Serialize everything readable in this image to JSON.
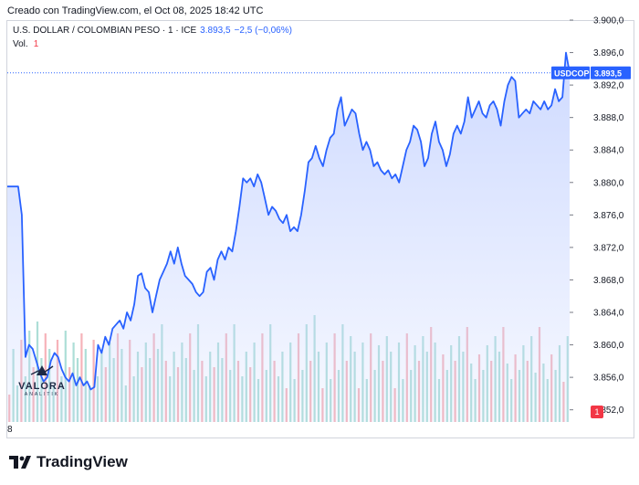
{
  "header": {
    "created_note": "Creado con TradingView.com, el Oct 08, 2025 18:42 UTC"
  },
  "legend": {
    "symbol": "U.S. DOLLAR / COLOMBIAN PESO · 1 · ICE",
    "price": "3.893,5",
    "change": "−2,5 (−0,06%)",
    "vol_label": "Vol.",
    "vol_value": "1"
  },
  "price_tag": {
    "ticker": "USDCOP",
    "value": "3.893,5"
  },
  "watermark": {
    "word": "VALORA",
    "sub": "ANALITIK"
  },
  "x_axis_left_label": "8",
  "volume_badge": "1",
  "footer": {
    "brand": "TradingView"
  },
  "colors": {
    "line": "#2962ff",
    "area_top": "#c9d6ff",
    "vol_up": "#9fd8d0",
    "vol_down": "#f5a6ad",
    "tag_bg": "#2962ff"
  },
  "chart_data": {
    "type": "area",
    "ylim": [
      3850.5,
      3900
    ],
    "y_ticks": [
      3852,
      3856,
      3860,
      3864,
      3868,
      3872,
      3876,
      3880,
      3884,
      3888,
      3892,
      3896,
      3900
    ],
    "y_tick_labels": [
      "3.852,0",
      "3.856,0",
      "3.860,0",
      "3.864,0",
      "3.868,0",
      "3.872,0",
      "3.876,0",
      "3.880,0",
      "3.884,0",
      "3.888,0",
      "3.892,0",
      "3.896,0",
      "3.900,0"
    ],
    "series": [
      {
        "values": [
          3879.5,
          3879.5,
          3879.5,
          3879.5,
          3876.0,
          3858.5,
          3860.0,
          3859.5,
          3858.0,
          3856.5,
          3855.5,
          3856.0,
          3858.0,
          3859.0,
          3858.5,
          3857.0,
          3856.0,
          3855.5,
          3856.5,
          3855.0,
          3856.0,
          3855.0,
          3855.5,
          3854.5,
          3854.8,
          3860.0,
          3859.0,
          3861.0,
          3860.0,
          3862.0,
          3862.5,
          3863.0,
          3862.0,
          3864.0,
          3863.0,
          3865.0,
          3868.5,
          3868.8,
          3867.0,
          3866.5,
          3864.0,
          3866.0,
          3868.0,
          3869.0,
          3870.0,
          3871.5,
          3870.0,
          3872.0,
          3870.0,
          3868.5,
          3868.0,
          3867.5,
          3866.5,
          3866.0,
          3866.5,
          3869.0,
          3869.5,
          3868.0,
          3870.5,
          3871.5,
          3870.5,
          3872.0,
          3871.5,
          3874.0,
          3877.0,
          3880.5,
          3880.0,
          3880.5,
          3879.5,
          3881.0,
          3880.0,
          3878.0,
          3876.0,
          3877.0,
          3876.5,
          3875.5,
          3875.0,
          3876.0,
          3874.0,
          3874.5,
          3874.0,
          3876.0,
          3879.0,
          3882.5,
          3883.0,
          3884.5,
          3883.0,
          3882.0,
          3884.0,
          3885.5,
          3886.0,
          3889.0,
          3890.5,
          3887.0,
          3888.0,
          3889.0,
          3888.5,
          3886.0,
          3884.0,
          3885.0,
          3884.0,
          3882.0,
          3882.5,
          3881.5,
          3881.0,
          3881.5,
          3880.5,
          3881.0,
          3880.0,
          3882.0,
          3884.0,
          3885.0,
          3887.0,
          3886.5,
          3885.0,
          3882.0,
          3883.0,
          3886.0,
          3887.5,
          3885.0,
          3884.0,
          3882.0,
          3883.5,
          3886.0,
          3887.0,
          3886.0,
          3887.5,
          3890.5,
          3888.0,
          3889.0,
          3890.0,
          3888.5,
          3888.0,
          3889.5,
          3890.0,
          3889.0,
          3887.0,
          3890.0,
          3892.0,
          3893.0,
          3892.5,
          3888.0,
          3888.5,
          3889.0,
          3888.5,
          3890.0,
          3889.5,
          3889.0,
          3890.0,
          3889.0,
          3889.5,
          3891.5,
          3890.0,
          3890.5,
          3896.0,
          3893.5
        ]
      }
    ],
    "volume_bar_count": 140,
    "last_price_label": "3.893,5",
    "grid": false
  }
}
